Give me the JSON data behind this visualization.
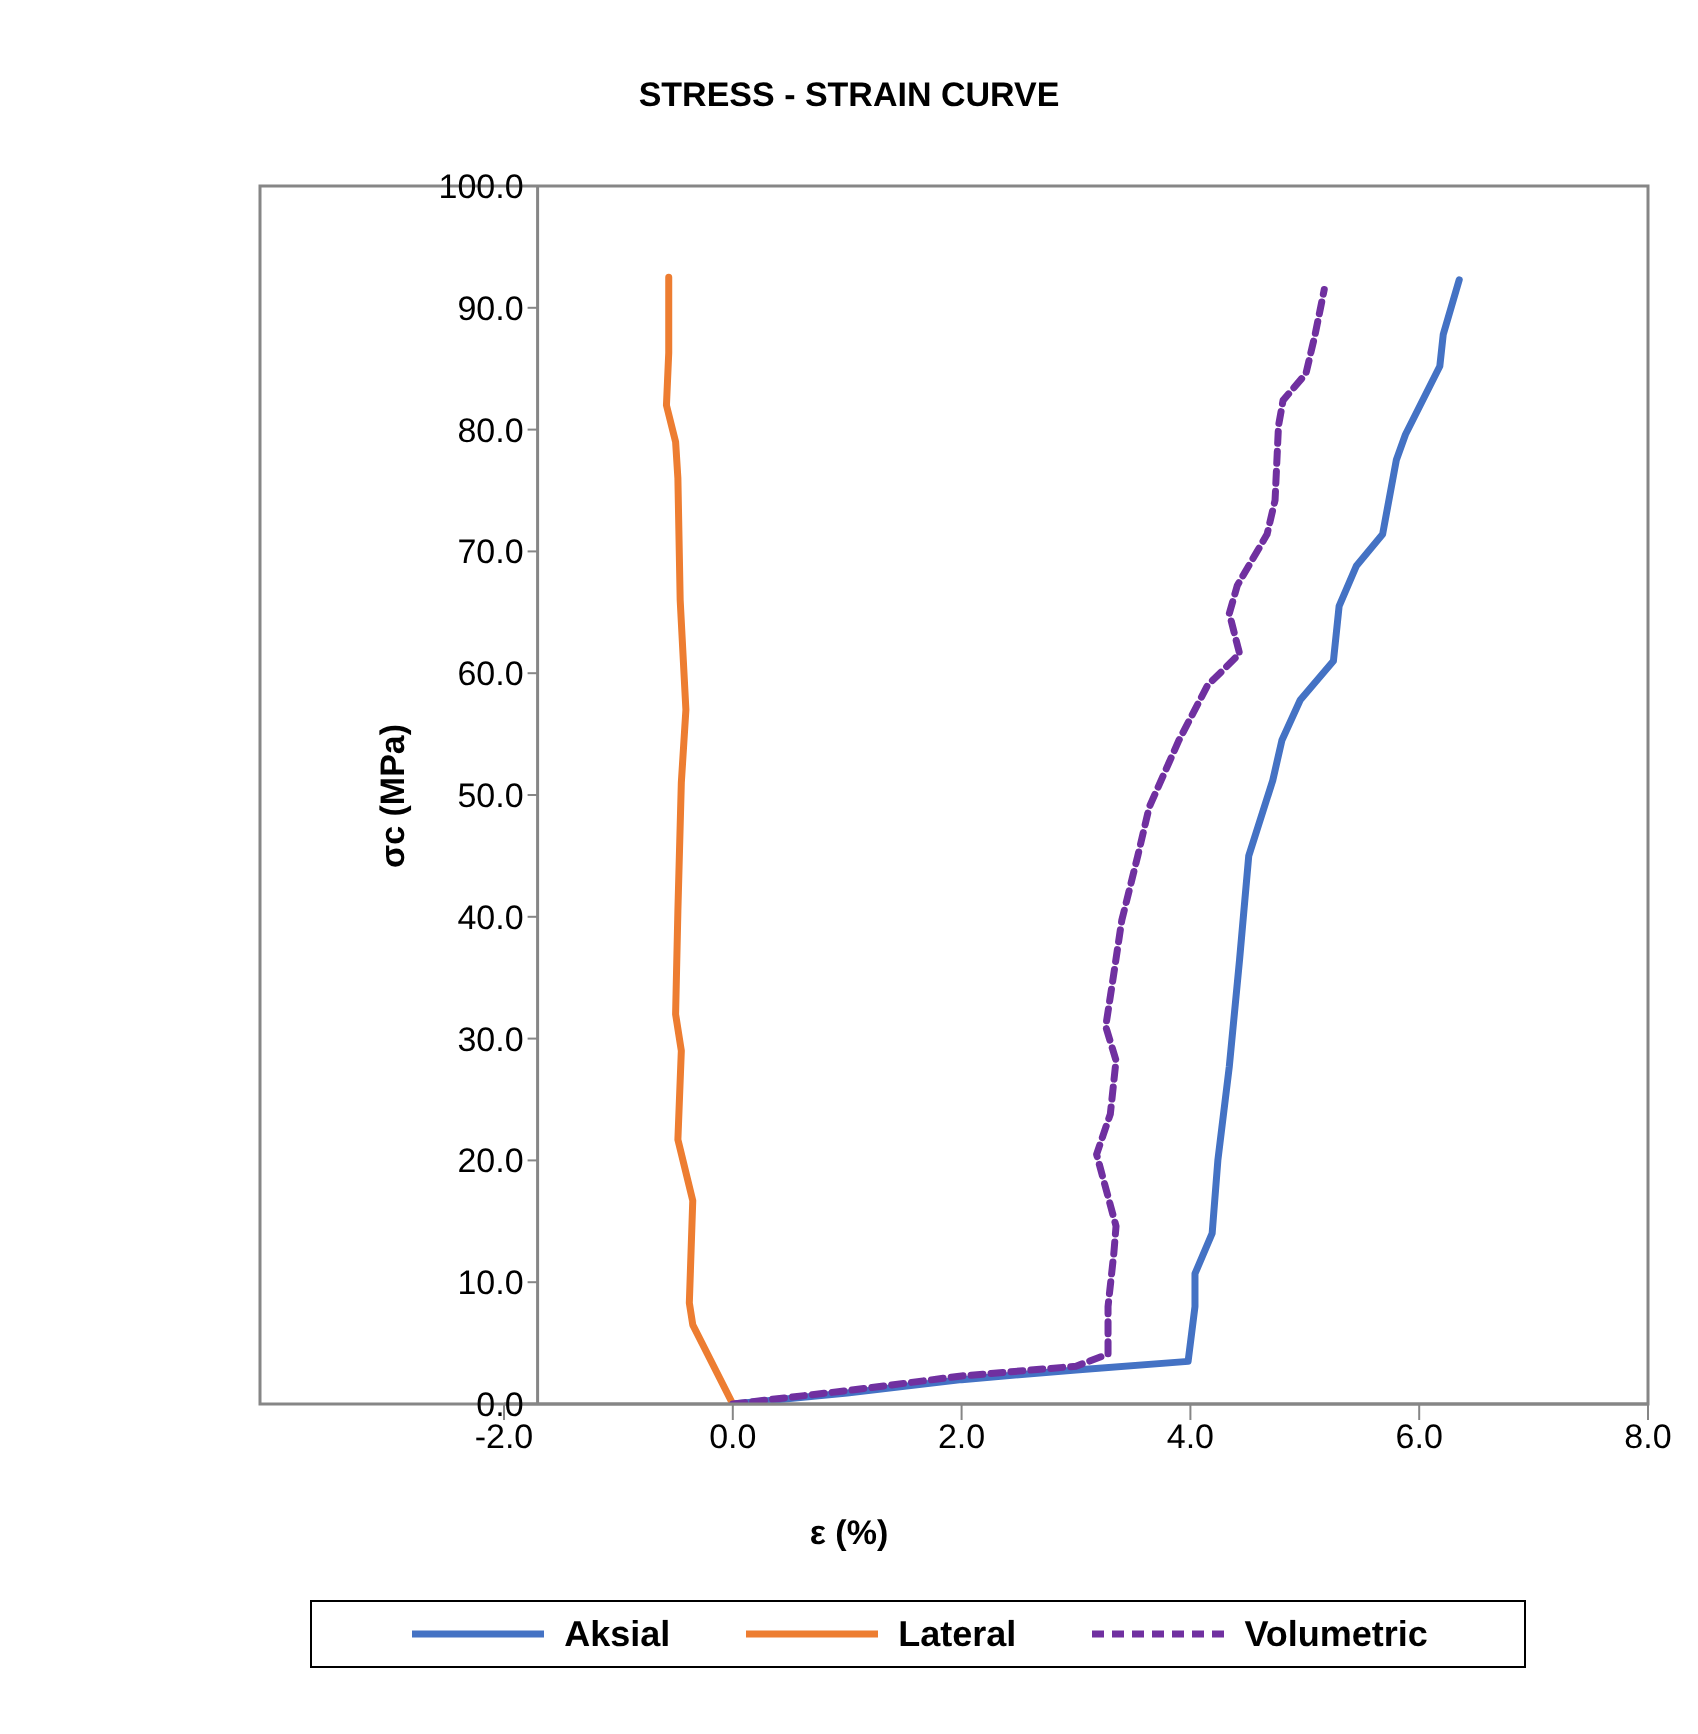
{
  "chart_data": {
    "type": "line",
    "title": "STRESS - STRAIN CURVE",
    "xlabel": "ε (%)",
    "ylabel": "σc (MPa)",
    "xlim": [
      -2,
      8
    ],
    "xticks": [
      {
        "value": -2,
        "label": "-2.0"
      },
      {
        "value": 0,
        "label": "0.0"
      },
      {
        "value": 2,
        "label": "2.0"
      },
      {
        "value": 4,
        "label": "4.0"
      },
      {
        "value": 6,
        "label": "6.0"
      },
      {
        "value": 8,
        "label": "8.0"
      }
    ],
    "ylim": [
      0,
      100
    ],
    "yticks": [
      {
        "value": 0,
        "label": "0.0"
      },
      {
        "value": 10,
        "label": "10.0"
      },
      {
        "value": 20,
        "label": "20.0"
      },
      {
        "value": 30,
        "label": "30.0"
      },
      {
        "value": 40,
        "label": "40.0"
      },
      {
        "value": 50,
        "label": "50.0"
      },
      {
        "value": 60,
        "label": "60.0"
      },
      {
        "value": 70,
        "label": "70.0"
      },
      {
        "value": 80,
        "label": "80.0"
      },
      {
        "value": 90,
        "label": "90.0"
      },
      {
        "value": 100,
        "label": "100.0"
      }
    ],
    "grid": false,
    "legend": "bottom",
    "marker": "none",
    "series": [
      {
        "name": "Aksial",
        "color": "#4472c4",
        "line_style": "solid",
        "x": [
          0,
          1,
          2,
          3,
          3.98,
          4.04,
          4.04,
          4.19,
          4.24,
          4.34,
          4.43,
          4.51,
          4.72,
          4.8,
          4.96,
          5.25,
          5.3,
          5.45,
          5.68,
          5.8,
          5.88,
          6.18,
          6.21,
          6.35
        ],
        "values": [
          0,
          0.9,
          2,
          2.8,
          3.5,
          8,
          10.7,
          14,
          20,
          27.7,
          36.5,
          45,
          51.2,
          54.5,
          57.8,
          61,
          65.5,
          68.8,
          71.4,
          77.5,
          79.6,
          85.2,
          87.8,
          92.3
        ]
      },
      {
        "name": "Lateral",
        "color": "#ed7d31",
        "line_style": "solid",
        "x": [
          0,
          -0.35,
          -0.38,
          -0.35,
          -0.48,
          -0.45,
          -0.5,
          -0.48,
          -0.45,
          -0.41,
          -0.46,
          -0.48,
          -0.5,
          -0.58,
          -0.56,
          -0.56
        ],
        "values": [
          0,
          6.5,
          8.3,
          16.7,
          21.7,
          29,
          32,
          40.5,
          51,
          57,
          66,
          76,
          79,
          82,
          86.3,
          92.5
        ]
      },
      {
        "name": "Volumetric",
        "color": "#7030a0",
        "line_style": "dashed",
        "x": [
          0,
          1,
          2,
          3,
          3.28,
          3.28,
          3.33,
          3.35,
          3.18,
          3.3,
          3.35,
          3.26,
          3.33,
          3.4,
          3.54,
          3.64,
          3.9,
          4.15,
          4.43,
          4.34,
          4.41,
          4.67,
          4.74,
          4.77,
          4.81,
          5.01,
          5.09,
          5.17
        ],
        "values": [
          0,
          1.1,
          2.3,
          3.1,
          4.1,
          8,
          12.3,
          14.6,
          20.5,
          23.8,
          28.2,
          31,
          35.3,
          39.7,
          45,
          49,
          54.5,
          59,
          61.6,
          64.9,
          67.2,
          71.4,
          74.2,
          80.3,
          82.4,
          84.6,
          87.8,
          91.5
        ]
      }
    ]
  }
}
